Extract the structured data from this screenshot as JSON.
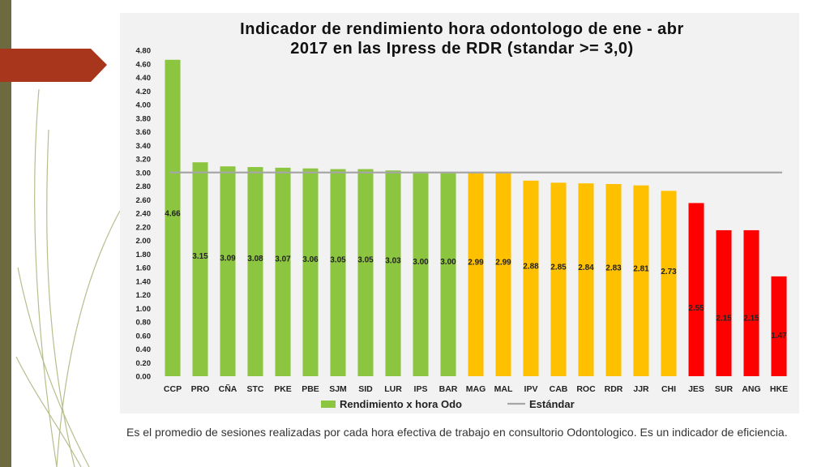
{
  "slide": {
    "caption": "Es el promedio de sesiones realizadas por cada hora efectiva de trabajo en consultorio Odontologico. Es un indicador de eficiencia."
  },
  "colors": {
    "green": "#8cc540",
    "orange": "#ffc000",
    "red": "#ff0000",
    "standard_line": "#a6a6a6",
    "accent_arrow": "#a8361c"
  },
  "chart_data": {
    "type": "bar",
    "title_lines": [
      "Indicador de rendimiento hora odontologo de ene - abr",
      "2017 en las Ipress de RDR (standar >= 3,0)"
    ],
    "categories": [
      "CCP",
      "PRO",
      "CÑA",
      "STC",
      "PKE",
      "PBE",
      "SJM",
      "SID",
      "LUR",
      "IPS",
      "BAR",
      "MAG",
      "MAL",
      "IPV",
      "CAB",
      "ROC",
      "RDR",
      "JJR",
      "CHI",
      "JES",
      "SUR",
      "ANG",
      "HKE"
    ],
    "values": [
      4.66,
      3.15,
      3.09,
      3.08,
      3.07,
      3.06,
      3.05,
      3.05,
      3.03,
      3.0,
      3.0,
      2.99,
      2.99,
      2.88,
      2.85,
      2.84,
      2.83,
      2.81,
      2.73,
      2.55,
      2.15,
      2.15,
      1.47
    ],
    "value_labels": [
      "4.66",
      "3.15",
      "3.09",
      "3.08",
      "3.07",
      "3.06",
      "3.05",
      "3.05",
      "3.03",
      "3.00",
      "3.00",
      "2.99",
      "2.99",
      "2.88",
      "2.85",
      "2.84",
      "2.83",
      "2.81",
      "2.73",
      "2.55",
      "2.15",
      "2.15",
      "1.47"
    ],
    "bar_color_keys": [
      "green",
      "green",
      "green",
      "green",
      "green",
      "green",
      "green",
      "green",
      "green",
      "green",
      "green",
      "orange",
      "orange",
      "orange",
      "orange",
      "orange",
      "orange",
      "orange",
      "orange",
      "red",
      "red",
      "red",
      "red"
    ],
    "standard": 3.0,
    "ylim": [
      0,
      4.8
    ],
    "yticks": [
      "0.00",
      "0.20",
      "0.40",
      "0.60",
      "0.80",
      "1.00",
      "1.20",
      "1.40",
      "1.60",
      "1.80",
      "2.00",
      "2.20",
      "2.40",
      "2.60",
      "2.80",
      "3.00",
      "3.20",
      "3.40",
      "3.60",
      "3.80",
      "4.00",
      "4.20",
      "4.40",
      "4.60",
      "4.80"
    ],
    "legend": [
      {
        "label": "Rendimiento x hora Odo",
        "kind": "bar"
      },
      {
        "label": "Estándar",
        "kind": "line"
      }
    ],
    "legend_position": "bottom",
    "xlabel": "",
    "ylabel": ""
  }
}
